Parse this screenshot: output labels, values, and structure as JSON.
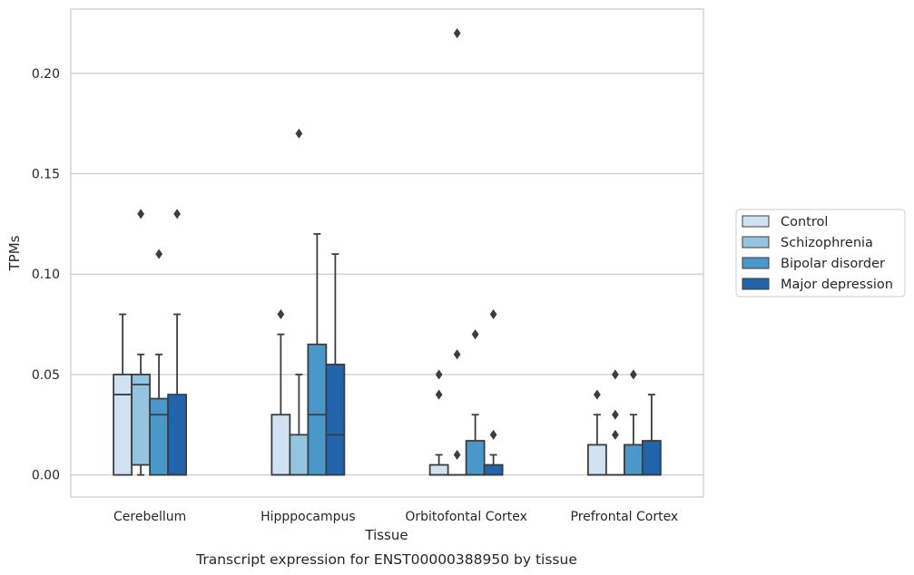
{
  "caption": "Transcript expression for ENST00000388950 by tissue",
  "chart_data": {
    "type": "boxplot",
    "xlabel": "Tissue",
    "ylabel": "TPMs",
    "ylim": [
      -0.011,
      0.232
    ],
    "yticks": [
      0.0,
      0.05,
      0.1,
      0.15,
      0.2
    ],
    "ytick_labels": [
      "0.00",
      "0.05",
      "0.10",
      "0.15",
      "0.20"
    ],
    "grid": true,
    "legend_position": "right",
    "categories": [
      "Cerebellum",
      "Hipppocampus",
      "Orbitofontal Cortex",
      "Prefrontal Cortex"
    ],
    "series": [
      {
        "name": "Control",
        "color": "#d0e1f2",
        "boxes": [
          {
            "wlo": 0.0,
            "q1": 0.0,
            "med": 0.04,
            "q3": 0.05,
            "whi": 0.08,
            "outliers": []
          },
          {
            "wlo": 0.0,
            "q1": 0.0,
            "med": 0.0,
            "q3": 0.03,
            "whi": 0.07,
            "outliers": [
              0.08
            ]
          },
          {
            "wlo": 0.0,
            "q1": 0.0,
            "med": 0.0,
            "q3": 0.005,
            "whi": 0.01,
            "outliers": [
              0.04,
              0.05
            ]
          },
          {
            "wlo": 0.0,
            "q1": 0.0,
            "med": 0.0,
            "q3": 0.015,
            "whi": 0.03,
            "outliers": [
              0.04
            ]
          }
        ]
      },
      {
        "name": "Schizophrenia",
        "color": "#94c4df",
        "boxes": [
          {
            "wlo": 0.0,
            "q1": 0.005,
            "med": 0.045,
            "q3": 0.05,
            "whi": 0.06,
            "outliers": [
              0.13
            ]
          },
          {
            "wlo": 0.0,
            "q1": 0.0,
            "med": 0.0,
            "q3": 0.02,
            "whi": 0.05,
            "outliers": [
              0.17
            ]
          },
          {
            "wlo": 0.0,
            "q1": 0.0,
            "med": 0.0,
            "q3": 0.0,
            "whi": 0.0,
            "outliers": [
              0.01,
              0.06,
              0.22
            ]
          },
          {
            "wlo": 0.0,
            "q1": 0.0,
            "med": 0.0,
            "q3": 0.0,
            "whi": 0.0,
            "outliers": [
              0.02,
              0.03,
              0.05
            ]
          }
        ]
      },
      {
        "name": "Bipolar disorder",
        "color": "#4a98c9",
        "boxes": [
          {
            "wlo": 0.0,
            "q1": 0.0,
            "med": 0.03,
            "q3": 0.038,
            "whi": 0.06,
            "outliers": [
              0.11
            ]
          },
          {
            "wlo": 0.0,
            "q1": 0.0,
            "med": 0.03,
            "q3": 0.065,
            "whi": 0.12,
            "outliers": []
          },
          {
            "wlo": 0.0,
            "q1": 0.0,
            "med": 0.0,
            "q3": 0.017,
            "whi": 0.03,
            "outliers": [
              0.07
            ]
          },
          {
            "wlo": 0.0,
            "q1": 0.0,
            "med": 0.0,
            "q3": 0.015,
            "whi": 0.03,
            "outliers": [
              0.05
            ]
          }
        ]
      },
      {
        "name": "Major depression",
        "color": "#2164ab",
        "boxes": [
          {
            "wlo": 0.0,
            "q1": 0.0,
            "med": 0.0,
            "q3": 0.04,
            "whi": 0.08,
            "outliers": [
              0.13
            ]
          },
          {
            "wlo": 0.0,
            "q1": 0.0,
            "med": 0.02,
            "q3": 0.055,
            "whi": 0.11,
            "outliers": []
          },
          {
            "wlo": 0.0,
            "q1": 0.0,
            "med": 0.0,
            "q3": 0.005,
            "whi": 0.01,
            "outliers": [
              0.02,
              0.08
            ]
          },
          {
            "wlo": 0.0,
            "q1": 0.0,
            "med": 0.0,
            "q3": 0.017,
            "whi": 0.04,
            "outliers": []
          }
        ]
      }
    ]
  }
}
